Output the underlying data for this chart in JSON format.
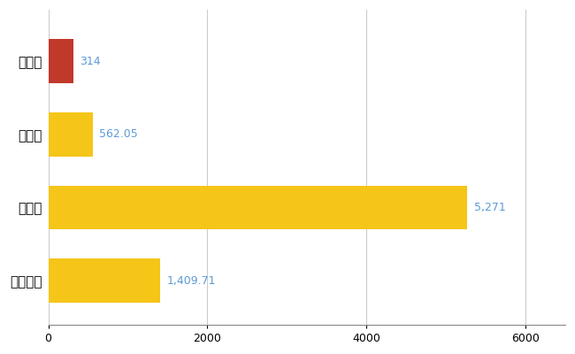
{
  "categories": [
    "上牧町",
    "県平均",
    "県最大",
    "全国平均"
  ],
  "values": [
    314,
    562.05,
    5271,
    1409.71
  ],
  "bar_colors": [
    "#c0392b",
    "#f5c518",
    "#f5c518",
    "#f5c518"
  ],
  "value_labels": [
    "314",
    "562.05",
    "5,271",
    "1,409.71"
  ],
  "xlim": [
    0,
    6500
  ],
  "xticks": [
    0,
    2000,
    4000,
    6000
  ],
  "label_color": "#5b9bd5",
  "label_fontsize": 9,
  "ytick_fontsize": 11,
  "xtick_fontsize": 9,
  "background_color": "#ffffff",
  "grid_color": "#cccccc",
  "bar_height": 0.6
}
